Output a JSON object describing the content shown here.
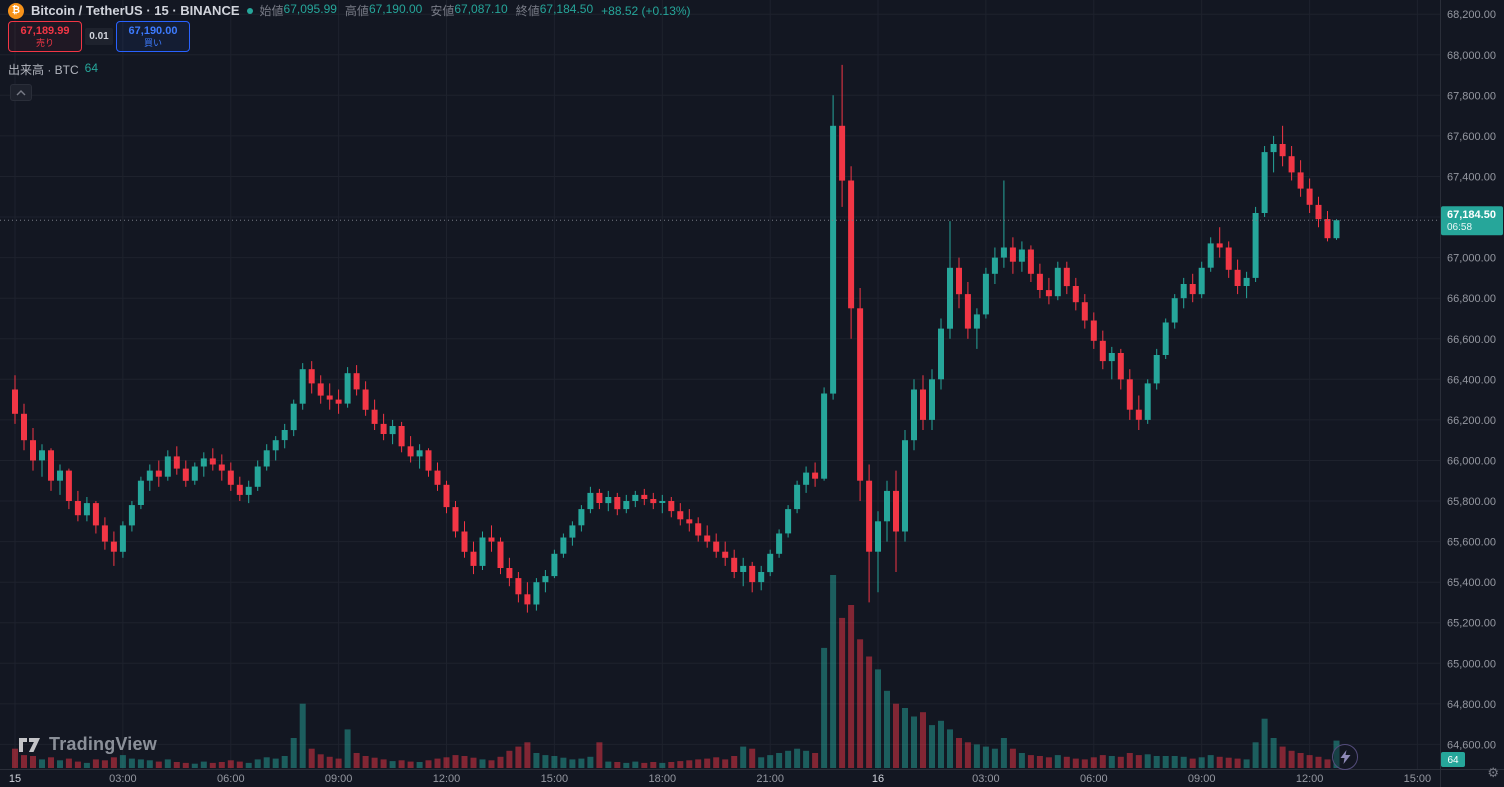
{
  "header": {
    "symbol_title": "Bitcoin / TetherUS · 15 · BINANCE",
    "ohlc": {
      "open_label": "始値",
      "open": "67,095.99",
      "high_label": "高値",
      "high": "67,190.00",
      "low_label": "安値",
      "low": "67,087.10",
      "close_label": "終値",
      "close": "67,184.50",
      "change": "+88.52 (+0.13%)"
    },
    "sell_button": {
      "price": "67,189.99",
      "label": "売り"
    },
    "spread": "0.01",
    "buy_button": {
      "price": "67,190.00",
      "label": "買い"
    },
    "volume_row": {
      "label": "出来高 · BTC",
      "value": "64"
    }
  },
  "watermark": {
    "logo_text": "TradingView"
  },
  "badges": {
    "volume_axis_badge": "64"
  },
  "colors": {
    "up": "#26a69a",
    "down": "#f23645",
    "vol_up": "rgba(38,166,154,0.5)",
    "vol_down": "rgba(242,54,69,0.5)",
    "bg": "#131722",
    "grid": "#1e222d",
    "axis_text": "#9598a1",
    "axis_text_bright": "#d1d4dc",
    "axis_border": "#2a2e39",
    "dashed": "#787b86",
    "accent_buy": "#2962ff",
    "accent_sell": "#f23645",
    "btc_orange": "#f7931a"
  },
  "chart_data": {
    "type": "candlestick",
    "title": "Bitcoin / TetherUS",
    "interval": "15",
    "exchange": "BINANCE",
    "ylim": [
      64474,
      68270
    ],
    "price_ticks": [
      68200,
      68000,
      67800,
      67600,
      67400,
      67200,
      67000,
      66800,
      66600,
      66400,
      66200,
      66000,
      65800,
      65600,
      65400,
      65200,
      65000,
      64800,
      64600
    ],
    "time_ticks": [
      {
        "label": "15",
        "candle": 1,
        "major": true
      },
      {
        "label": "03:00",
        "candle": 13,
        "major": false
      },
      {
        "label": "06:00",
        "candle": 25,
        "major": false
      },
      {
        "label": "09:00",
        "candle": 37,
        "major": false
      },
      {
        "label": "12:00",
        "candle": 49,
        "major": false
      },
      {
        "label": "15:00",
        "candle": 61,
        "major": false
      },
      {
        "label": "18:00",
        "candle": 73,
        "major": false
      },
      {
        "label": "21:00",
        "candle": 85,
        "major": false
      },
      {
        "label": "16",
        "candle": 97,
        "major": true
      },
      {
        "label": "03:00",
        "candle": 109,
        "major": false
      },
      {
        "label": "06:00",
        "candle": 121,
        "major": false
      },
      {
        "label": "09:00",
        "candle": 133,
        "major": false
      },
      {
        "label": "12:00",
        "candle": 145,
        "major": false
      },
      {
        "label": "15:00",
        "candle": 157,
        "major": false
      }
    ],
    "volume_axis_max": 450,
    "current": {
      "price": 67184.5,
      "countdown": "06:58"
    },
    "candles_format": [
      "open",
      "high",
      "low",
      "close",
      "volume"
    ],
    "candles": [
      [
        66350,
        66420,
        66180,
        66230,
        45
      ],
      [
        66230,
        66280,
        66050,
        66100,
        30
      ],
      [
        66100,
        66160,
        65950,
        66000,
        28
      ],
      [
        66000,
        66080,
        65920,
        66050,
        20
      ],
      [
        66050,
        66060,
        65850,
        65900,
        25
      ],
      [
        65900,
        65980,
        65830,
        65950,
        18
      ],
      [
        65950,
        65960,
        65760,
        65800,
        22
      ],
      [
        65800,
        65850,
        65700,
        65730,
        15
      ],
      [
        65730,
        65820,
        65700,
        65790,
        12
      ],
      [
        65790,
        65800,
        65640,
        65680,
        20
      ],
      [
        65680,
        65720,
        65560,
        65600,
        18
      ],
      [
        65600,
        65650,
        65480,
        65550,
        25
      ],
      [
        65550,
        65700,
        65520,
        65680,
        30
      ],
      [
        65680,
        65800,
        65650,
        65780,
        22
      ],
      [
        65780,
        65920,
        65760,
        65900,
        20
      ],
      [
        65900,
        65980,
        65850,
        65950,
        18
      ],
      [
        65950,
        66000,
        65870,
        65920,
        15
      ],
      [
        65920,
        66050,
        65900,
        66020,
        20
      ],
      [
        66020,
        66070,
        65930,
        65960,
        14
      ],
      [
        65960,
        66000,
        65870,
        65900,
        12
      ],
      [
        65900,
        65990,
        65880,
        65970,
        10
      ],
      [
        65970,
        66040,
        65920,
        66010,
        15
      ],
      [
        66010,
        66060,
        65950,
        65980,
        12
      ],
      [
        65980,
        66030,
        65900,
        65950,
        14
      ],
      [
        65950,
        65990,
        65850,
        65880,
        18
      ],
      [
        65880,
        65920,
        65800,
        65830,
        15
      ],
      [
        65830,
        65900,
        65790,
        65870,
        12
      ],
      [
        65870,
        66000,
        65850,
        65970,
        20
      ],
      [
        65970,
        66080,
        65950,
        66050,
        25
      ],
      [
        66050,
        66120,
        66000,
        66100,
        22
      ],
      [
        66100,
        66180,
        66060,
        66150,
        28
      ],
      [
        66150,
        66300,
        66120,
        66280,
        70
      ],
      [
        66280,
        66480,
        66250,
        66450,
        150
      ],
      [
        66450,
        66490,
        66330,
        66380,
        45
      ],
      [
        66380,
        66420,
        66280,
        66320,
        32
      ],
      [
        66320,
        66380,
        66250,
        66300,
        26
      ],
      [
        66300,
        66350,
        66230,
        66280,
        22
      ],
      [
        66280,
        66460,
        66260,
        66430,
        90
      ],
      [
        66430,
        66470,
        66320,
        66350,
        35
      ],
      [
        66350,
        66390,
        66220,
        66250,
        28
      ],
      [
        66250,
        66300,
        66150,
        66180,
        24
      ],
      [
        66180,
        66230,
        66100,
        66130,
        20
      ],
      [
        66130,
        66200,
        66080,
        66170,
        16
      ],
      [
        66170,
        66190,
        66040,
        66070,
        18
      ],
      [
        66070,
        66120,
        65990,
        66020,
        15
      ],
      [
        66020,
        66080,
        65960,
        66050,
        14
      ],
      [
        66050,
        66060,
        65920,
        65950,
        18
      ],
      [
        65950,
        65990,
        65850,
        65880,
        22
      ],
      [
        65880,
        65900,
        65740,
        65770,
        25
      ],
      [
        65770,
        65800,
        65620,
        65650,
        30
      ],
      [
        65650,
        65700,
        65520,
        65550,
        28
      ],
      [
        65550,
        65600,
        65440,
        65480,
        24
      ],
      [
        65480,
        65650,
        65460,
        65620,
        20
      ],
      [
        65620,
        65680,
        65550,
        65600,
        18
      ],
      [
        65600,
        65620,
        65440,
        65470,
        26
      ],
      [
        65470,
        65520,
        65380,
        65420,
        40
      ],
      [
        65420,
        65450,
        65300,
        65340,
        50
      ],
      [
        65340,
        65400,
        65250,
        65290,
        60
      ],
      [
        65290,
        65420,
        65260,
        65400,
        35
      ],
      [
        65400,
        65460,
        65350,
        65430,
        30
      ],
      [
        65430,
        65560,
        65420,
        65540,
        28
      ],
      [
        65540,
        65640,
        65520,
        65620,
        24
      ],
      [
        65620,
        65700,
        65580,
        65680,
        20
      ],
      [
        65680,
        65780,
        65650,
        65760,
        22
      ],
      [
        65760,
        65870,
        65740,
        65840,
        26
      ],
      [
        65840,
        65860,
        65760,
        65790,
        60
      ],
      [
        65790,
        65850,
        65750,
        65820,
        15
      ],
      [
        65820,
        65840,
        65730,
        65760,
        14
      ],
      [
        65760,
        65830,
        65740,
        65800,
        12
      ],
      [
        65800,
        65850,
        65770,
        65830,
        15
      ],
      [
        65830,
        65860,
        65780,
        65810,
        12
      ],
      [
        65810,
        65840,
        65760,
        65790,
        14
      ],
      [
        65790,
        65830,
        65740,
        65800,
        12
      ],
      [
        65800,
        65820,
        65720,
        65750,
        14
      ],
      [
        65750,
        65790,
        65680,
        65710,
        16
      ],
      [
        65710,
        65760,
        65650,
        65690,
        18
      ],
      [
        65690,
        65720,
        65600,
        65630,
        20
      ],
      [
        65630,
        65680,
        65570,
        65600,
        22
      ],
      [
        65600,
        65640,
        65520,
        65550,
        25
      ],
      [
        65550,
        65600,
        65480,
        65520,
        20
      ],
      [
        65520,
        65560,
        65420,
        65450,
        28
      ],
      [
        65450,
        65520,
        65380,
        65480,
        50
      ],
      [
        65480,
        65500,
        65350,
        65400,
        45
      ],
      [
        65400,
        65480,
        65360,
        65450,
        25
      ],
      [
        65450,
        65560,
        65430,
        65540,
        30
      ],
      [
        65540,
        65660,
        65520,
        65640,
        35
      ],
      [
        65640,
        65780,
        65620,
        65760,
        40
      ],
      [
        65760,
        65900,
        65740,
        65880,
        45
      ],
      [
        65880,
        65970,
        65840,
        65940,
        40
      ],
      [
        65940,
        65990,
        65870,
        65910,
        35
      ],
      [
        65910,
        66360,
        65900,
        66330,
        280
      ],
      [
        66330,
        67800,
        66300,
        67650,
        450
      ],
      [
        67650,
        67950,
        67250,
        67380,
        350
      ],
      [
        67380,
        67450,
        66600,
        66750,
        380
      ],
      [
        66750,
        66850,
        65800,
        65900,
        300
      ],
      [
        65900,
        65980,
        65300,
        65550,
        260
      ],
      [
        65550,
        65750,
        65350,
        65700,
        230
      ],
      [
        65700,
        65900,
        65600,
        65850,
        180
      ],
      [
        65850,
        65950,
        65450,
        65650,
        150
      ],
      [
        65650,
        66150,
        65600,
        66100,
        140
      ],
      [
        66100,
        66400,
        66050,
        66350,
        120
      ],
      [
        66350,
        66420,
        66150,
        66200,
        130
      ],
      [
        66200,
        66450,
        66150,
        66400,
        100
      ],
      [
        66400,
        66700,
        66350,
        66650,
        110
      ],
      [
        66650,
        67180,
        66600,
        66950,
        90
      ],
      [
        66950,
        67000,
        66750,
        66820,
        70
      ],
      [
        66820,
        66880,
        66600,
        66650,
        60
      ],
      [
        66650,
        66750,
        66550,
        66720,
        55
      ],
      [
        66720,
        66950,
        66700,
        66920,
        50
      ],
      [
        66920,
        67050,
        66870,
        67000,
        45
      ],
      [
        67000,
        67380,
        66950,
        67050,
        70
      ],
      [
        67050,
        67100,
        66920,
        66980,
        45
      ],
      [
        66980,
        67080,
        66930,
        67040,
        35
      ],
      [
        67040,
        67060,
        66880,
        66920,
        30
      ],
      [
        66920,
        66970,
        66800,
        66840,
        28
      ],
      [
        66840,
        66900,
        66770,
        66810,
        25
      ],
      [
        66810,
        66980,
        66790,
        66950,
        30
      ],
      [
        66950,
        66980,
        66820,
        66860,
        26
      ],
      [
        66860,
        66900,
        66740,
        66780,
        22
      ],
      [
        66780,
        66820,
        66650,
        66690,
        20
      ],
      [
        66690,
        66730,
        66550,
        66590,
        25
      ],
      [
        66590,
        66640,
        66450,
        66490,
        30
      ],
      [
        66490,
        66560,
        66400,
        66530,
        28
      ],
      [
        66530,
        66550,
        66350,
        66400,
        26
      ],
      [
        66400,
        66450,
        66200,
        66250,
        35
      ],
      [
        66250,
        66320,
        66150,
        66200,
        30
      ],
      [
        66200,
        66400,
        66180,
        66380,
        32
      ],
      [
        66380,
        66550,
        66350,
        66520,
        28
      ],
      [
        66520,
        66700,
        66500,
        66680,
        28
      ],
      [
        66680,
        66820,
        66650,
        66800,
        28
      ],
      [
        66800,
        66900,
        66750,
        66870,
        26
      ],
      [
        66870,
        66920,
        66780,
        66820,
        22
      ],
      [
        66820,
        66980,
        66800,
        66950,
        25
      ],
      [
        66950,
        67100,
        66930,
        67070,
        30
      ],
      [
        67070,
        67150,
        67000,
        67050,
        26
      ],
      [
        67050,
        67080,
        66900,
        66940,
        24
      ],
      [
        66940,
        66990,
        66820,
        66860,
        22
      ],
      [
        66860,
        66930,
        66800,
        66900,
        20
      ],
      [
        66900,
        67250,
        66880,
        67220,
        60
      ],
      [
        67220,
        67550,
        67200,
        67520,
        115
      ],
      [
        67520,
        67600,
        67420,
        67560,
        70
      ],
      [
        67560,
        67650,
        67450,
        67500,
        50
      ],
      [
        67500,
        67550,
        67380,
        67420,
        40
      ],
      [
        67420,
        67480,
        67300,
        67340,
        35
      ],
      [
        67340,
        67390,
        67220,
        67260,
        30
      ],
      [
        67260,
        67300,
        67150,
        67190,
        26
      ],
      [
        67190,
        67230,
        67080,
        67096,
        20
      ],
      [
        67095.99,
        67190,
        67087.1,
        67184.5,
        64
      ]
    ]
  }
}
